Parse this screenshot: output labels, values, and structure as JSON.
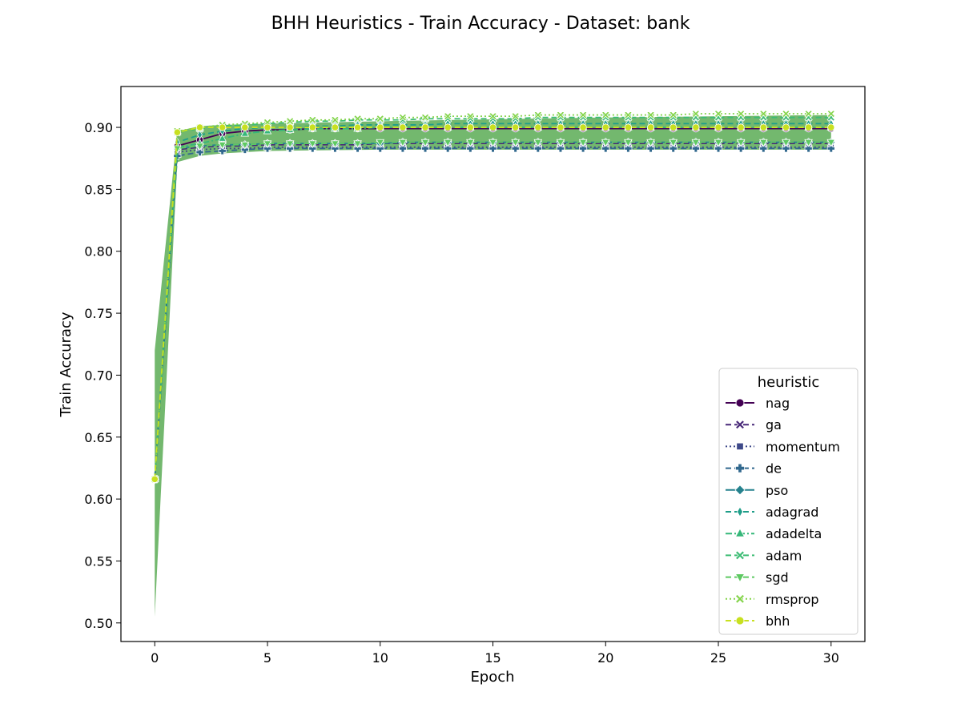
{
  "figure": {
    "title": "BHH Heuristics - Train Accuracy - Dataset: bank"
  },
  "chart_data": {
    "type": "line",
    "title": "BHH Heuristics - Train Accuracy - Dataset: bank",
    "xlabel": "Epoch",
    "ylabel": "Train Accuracy",
    "xlim": [
      -1.5,
      31.5
    ],
    "ylim": [
      0.485,
      0.933
    ],
    "x_ticks": [
      0,
      5,
      10,
      15,
      20,
      25,
      30
    ],
    "x_tick_labels": [
      "0",
      "5",
      "10",
      "15",
      "20",
      "25",
      "30"
    ],
    "y_ticks": [
      0.5,
      0.55,
      0.6,
      0.65,
      0.7,
      0.75,
      0.8,
      0.85,
      0.9
    ],
    "y_tick_labels": [
      "0.50",
      "0.55",
      "0.60",
      "0.65",
      "0.70",
      "0.75",
      "0.80",
      "0.85",
      "0.90"
    ],
    "grid": false,
    "legend": {
      "title": "heuristic",
      "placement": "lower right"
    },
    "x": [
      0,
      1,
      2,
      3,
      4,
      5,
      6,
      7,
      8,
      9,
      10,
      11,
      12,
      13,
      14,
      15,
      16,
      17,
      18,
      19,
      20,
      21,
      22,
      23,
      24,
      25,
      26,
      27,
      28,
      29,
      30
    ],
    "confidence_band": {
      "color": "#5aac55",
      "x": [
        0,
        1,
        2,
        3,
        5,
        10,
        20,
        30
      ],
      "lower": [
        0.505,
        0.872,
        0.877,
        0.879,
        0.881,
        0.882,
        0.882,
        0.882
      ],
      "upper": [
        0.72,
        0.897,
        0.901,
        0.902,
        0.903,
        0.905,
        0.908,
        0.91
      ]
    },
    "series": [
      {
        "name": "nag",
        "color": "#440154",
        "marker": "circle",
        "dash": "solid",
        "values": [
          0.616,
          0.885,
          0.89,
          0.895,
          0.897,
          0.898,
          0.898,
          0.899,
          0.899,
          0.899,
          0.899,
          0.899,
          0.899,
          0.899,
          0.899,
          0.899,
          0.899,
          0.899,
          0.899,
          0.899,
          0.899,
          0.899,
          0.899,
          0.899,
          0.899,
          0.899,
          0.899,
          0.899,
          0.899,
          0.899,
          0.899
        ]
      },
      {
        "name": "ga",
        "color": "#482878",
        "marker": "x",
        "dash": "dashed",
        "values": [
          0.616,
          0.882,
          0.884,
          0.885,
          0.885,
          0.886,
          0.886,
          0.886,
          0.886,
          0.886,
          0.887,
          0.887,
          0.887,
          0.887,
          0.887,
          0.887,
          0.887,
          0.887,
          0.887,
          0.887,
          0.887,
          0.887,
          0.887,
          0.887,
          0.887,
          0.887,
          0.887,
          0.887,
          0.887,
          0.887,
          0.887
        ]
      },
      {
        "name": "momentum",
        "color": "#3e4989",
        "marker": "square",
        "dash": "dotted",
        "values": [
          0.616,
          0.88,
          0.882,
          0.883,
          0.883,
          0.884,
          0.884,
          0.884,
          0.884,
          0.884,
          0.884,
          0.884,
          0.884,
          0.884,
          0.884,
          0.884,
          0.884,
          0.884,
          0.884,
          0.884,
          0.884,
          0.884,
          0.884,
          0.884,
          0.884,
          0.884,
          0.884,
          0.884,
          0.884,
          0.884,
          0.884
        ]
      },
      {
        "name": "de",
        "color": "#31688e",
        "marker": "plus",
        "dash": "dashed",
        "values": [
          0.616,
          0.877,
          0.88,
          0.881,
          0.882,
          0.883,
          0.883,
          0.883,
          0.883,
          0.883,
          0.883,
          0.883,
          0.883,
          0.883,
          0.883,
          0.883,
          0.883,
          0.883,
          0.883,
          0.883,
          0.883,
          0.883,
          0.883,
          0.883,
          0.883,
          0.883,
          0.883,
          0.883,
          0.883,
          0.883,
          0.883
        ]
      },
      {
        "name": "pso",
        "color": "#26828e",
        "marker": "diamond",
        "dash": "solid",
        "values": [
          0.616,
          0.883,
          0.885,
          0.886,
          0.886,
          0.887,
          0.887,
          0.887,
          0.887,
          0.887,
          0.887,
          0.888,
          0.888,
          0.888,
          0.888,
          0.888,
          0.888,
          0.888,
          0.888,
          0.888,
          0.888,
          0.888,
          0.888,
          0.888,
          0.888,
          0.888,
          0.888,
          0.888,
          0.888,
          0.888,
          0.888
        ]
      },
      {
        "name": "adagrad",
        "color": "#1f9e89",
        "marker": "thin_diamond",
        "dash": "dashed",
        "values": [
          0.616,
          0.888,
          0.894,
          0.897,
          0.899,
          0.9,
          0.9,
          0.901,
          0.901,
          0.902,
          0.902,
          0.902,
          0.902,
          0.903,
          0.903,
          0.903,
          0.903,
          0.903,
          0.903,
          0.903,
          0.903,
          0.903,
          0.903,
          0.903,
          0.903,
          0.903,
          0.903,
          0.903,
          0.903,
          0.903,
          0.903
        ]
      },
      {
        "name": "adadelta",
        "color": "#35b779",
        "marker": "triangle-up",
        "dash": "dashdot",
        "values": [
          0.616,
          0.884,
          0.887,
          0.891,
          0.895,
          0.897,
          0.898,
          0.899,
          0.899,
          0.899,
          0.9,
          0.9,
          0.9,
          0.9,
          0.9,
          0.9,
          0.9,
          0.9,
          0.9,
          0.9,
          0.9,
          0.9,
          0.9,
          0.9,
          0.9,
          0.9,
          0.9,
          0.9,
          0.9,
          0.9,
          0.9
        ]
      },
      {
        "name": "adam",
        "color": "#3dbc74",
        "marker": "x-filled",
        "dash": "dashed",
        "values": [
          0.616,
          0.896,
          0.899,
          0.901,
          0.902,
          0.903,
          0.904,
          0.905,
          0.905,
          0.906,
          0.906,
          0.906,
          0.907,
          0.907,
          0.907,
          0.907,
          0.907,
          0.908,
          0.908,
          0.908,
          0.908,
          0.908,
          0.908,
          0.908,
          0.908,
          0.908,
          0.908,
          0.908,
          0.908,
          0.908,
          0.908
        ]
      },
      {
        "name": "sgd",
        "color": "#5ec962",
        "marker": "triangle-down",
        "dash": "dashed",
        "values": [
          0.616,
          0.883,
          0.885,
          0.886,
          0.886,
          0.887,
          0.887,
          0.887,
          0.887,
          0.887,
          0.888,
          0.888,
          0.888,
          0.888,
          0.888,
          0.888,
          0.888,
          0.888,
          0.888,
          0.888,
          0.888,
          0.888,
          0.888,
          0.888,
          0.888,
          0.888,
          0.888,
          0.888,
          0.888,
          0.888,
          0.888
        ]
      },
      {
        "name": "rmsprop",
        "color": "#84d44b",
        "marker": "x-filled",
        "dash": "dotted",
        "values": [
          0.616,
          0.897,
          0.9,
          0.902,
          0.903,
          0.904,
          0.905,
          0.906,
          0.906,
          0.907,
          0.907,
          0.908,
          0.908,
          0.909,
          0.909,
          0.909,
          0.909,
          0.91,
          0.91,
          0.91,
          0.91,
          0.91,
          0.91,
          0.91,
          0.911,
          0.911,
          0.911,
          0.911,
          0.911,
          0.911,
          0.911
        ]
      },
      {
        "name": "bhh",
        "color": "#c8e020",
        "marker": "octagon",
        "dash": "dashed",
        "values": [
          0.616,
          0.896,
          0.9,
          0.9,
          0.9,
          0.9,
          0.9,
          0.9,
          0.9,
          0.9,
          0.9,
          0.9,
          0.9,
          0.9,
          0.9,
          0.9,
          0.9,
          0.9,
          0.9,
          0.9,
          0.9,
          0.9,
          0.9,
          0.9,
          0.9,
          0.9,
          0.9,
          0.9,
          0.9,
          0.9,
          0.9
        ]
      }
    ]
  }
}
